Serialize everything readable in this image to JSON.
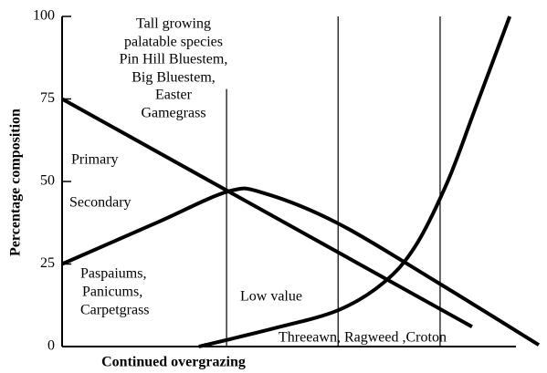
{
  "chart_data": {
    "type": "line",
    "xlabel": "Continued overgrazing",
    "ylabel": "Percentage composition",
    "xlim": [
      0,
      100
    ],
    "ylim": [
      0,
      100
    ],
    "yticks": [
      0,
      25,
      50,
      75,
      100
    ],
    "series": [
      {
        "name": "Primary",
        "color": "#000",
        "x": [
          0,
          86
        ],
        "values": [
          75,
          6
        ]
      },
      {
        "name": "Secondary",
        "color": "#000",
        "x": [
          0,
          19.5,
          34.9,
          42.5,
          57.9,
          78.9,
          100
        ],
        "values": [
          25,
          37.3,
          47,
          46.4,
          37.3,
          19.3,
          0.5
        ]
      },
      {
        "name": "Low value",
        "color": "#000",
        "x": [
          28.7,
          44.4,
          57.9,
          67.4,
          74.1,
          80.8,
          86.6,
          93.9
        ],
        "values": [
          0,
          5.5,
          11,
          19.3,
          30.4,
          49.7,
          71.8,
          100
        ]
      }
    ],
    "vlines": [
      {
        "x": 34.5,
        "top": 78
      },
      {
        "x": 57.9,
        "top": 100
      },
      {
        "x": 79.3,
        "top": 100
      }
    ],
    "annotations": [
      "Tall growing",
      "palatable species",
      "Pin Hill Bluestem,",
      "Big Bluestem,",
      "Easter",
      "Gamegrass",
      "Paspaiums,",
      "Panicums,",
      "Carpetgrass",
      "Threeawn, Ragweed ,Croton"
    ]
  }
}
